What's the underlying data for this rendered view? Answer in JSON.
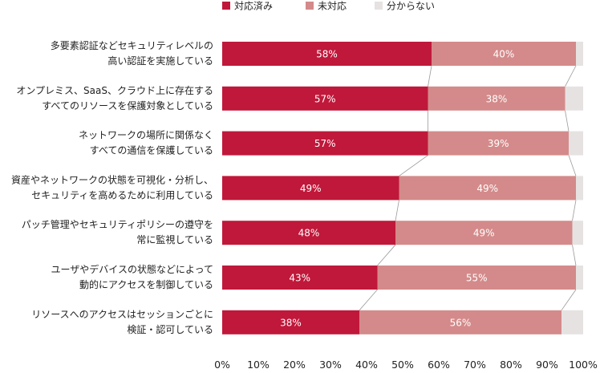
{
  "chart_data": {
    "type": "bar",
    "orientation": "horizontal",
    "stacked": true,
    "categories": [
      [
        "多要素認証などセキュリティレベルの",
        "高い認証を実施している"
      ],
      [
        "オンプレミス、SaaS、クラウド上に存在する",
        "すべてのリソースを保護対象としている"
      ],
      [
        "ネットワークの場所に関係なく",
        "すべての通信を保護している"
      ],
      [
        "資産やネットワークの状態を可視化・分析し、",
        "セキュリティを高めるために利用している"
      ],
      [
        "パッチ管理やセキュリティポリシーの遵守を",
        "常に監視している"
      ],
      [
        "ユーザやデバイスの状態などによって",
        "動的にアクセスを制御している"
      ],
      [
        "リソースへのアクセスはセッションごとに",
        "検証・認可している"
      ]
    ],
    "series": [
      {
        "name": "対応済み",
        "color": "#c0183a",
        "values": [
          58,
          57,
          57,
          49,
          48,
          43,
          38
        ],
        "labels": [
          "58%",
          "57%",
          "57%",
          "49%",
          "48%",
          "43%",
          "38%"
        ]
      },
      {
        "name": "未対応",
        "color": "#d48a8a",
        "values": [
          40,
          38,
          39,
          49,
          49,
          55,
          56
        ],
        "labels": [
          "40%",
          "38%",
          "39%",
          "49%",
          "49%",
          "55%",
          "56%"
        ]
      },
      {
        "name": "分からない",
        "color": "#e6e2e2",
        "values": [
          2,
          5,
          4,
          2,
          3,
          2,
          6
        ]
      }
    ],
    "xlim": [
      0,
      100
    ],
    "xticks": [
      "0%",
      "10%",
      "20%",
      "30%",
      "40%",
      "50%",
      "60%",
      "70%",
      "80%",
      "90%",
      "100%"
    ],
    "legend_position": "top",
    "series_lines": true,
    "grid": false
  }
}
